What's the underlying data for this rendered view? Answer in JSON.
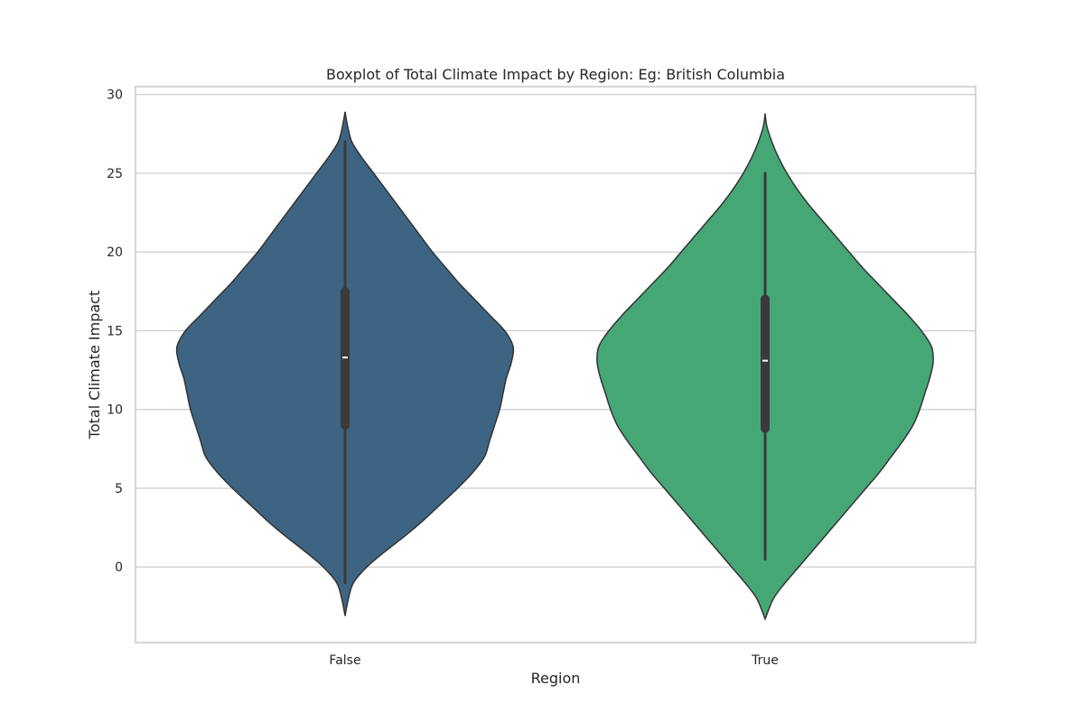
{
  "chart_data": {
    "type": "violin",
    "title": "Boxplot of Total Climate Impact by Region: Eg: British Columbia",
    "xlabel": "Region",
    "ylabel": "Total Climate Impact",
    "ylim": [
      -4.8,
      30.5
    ],
    "yticks": [
      0,
      5,
      10,
      15,
      20,
      25,
      30
    ],
    "ytick_labels": [
      "0",
      "5",
      "10",
      "15",
      "20",
      "25",
      "30"
    ],
    "grid": true,
    "categories": [
      "False",
      "True"
    ],
    "series": [
      {
        "name": "False",
        "color": "#3d6482",
        "box": {
          "whisker_low": -1.0,
          "q1": 9.0,
          "median": 13.3,
          "q3": 17.5,
          "whisker_high": 27.0
        },
        "kde_extent": [
          -3.1,
          28.9
        ],
        "density_profile": [
          [
            -3.1,
            0.0
          ],
          [
            -2.0,
            0.02
          ],
          [
            -1.0,
            0.05
          ],
          [
            0.0,
            0.13
          ],
          [
            1.0,
            0.24
          ],
          [
            2.0,
            0.36
          ],
          [
            3.0,
            0.47
          ],
          [
            4.0,
            0.57
          ],
          [
            5.0,
            0.67
          ],
          [
            6.0,
            0.76
          ],
          [
            7.0,
            0.83
          ],
          [
            8.0,
            0.86
          ],
          [
            9.0,
            0.89
          ],
          [
            10.0,
            0.92
          ],
          [
            11.0,
            0.94
          ],
          [
            12.0,
            0.96
          ],
          [
            13.0,
            0.99
          ],
          [
            14.0,
            1.0
          ],
          [
            15.0,
            0.95
          ],
          [
            16.0,
            0.86
          ],
          [
            17.0,
            0.77
          ],
          [
            18.0,
            0.68
          ],
          [
            19.0,
            0.6
          ],
          [
            20.0,
            0.52
          ],
          [
            21.0,
            0.45
          ],
          [
            22.0,
            0.38
          ],
          [
            23.0,
            0.31
          ],
          [
            24.0,
            0.24
          ],
          [
            25.0,
            0.17
          ],
          [
            26.0,
            0.1
          ],
          [
            27.0,
            0.04
          ],
          [
            28.0,
            0.015
          ],
          [
            28.9,
            0.0
          ]
        ]
      },
      {
        "name": "True",
        "color": "#45a776",
        "box": {
          "whisker_low": 0.5,
          "q1": 8.8,
          "median": 13.1,
          "q3": 17.0,
          "whisker_high": 25.0
        },
        "kde_extent": [
          -3.3,
          28.8
        ],
        "density_profile": [
          [
            -3.3,
            0.0
          ],
          [
            -2.0,
            0.05
          ],
          [
            -1.0,
            0.12
          ],
          [
            0.0,
            0.2
          ],
          [
            1.0,
            0.28
          ],
          [
            2.0,
            0.36
          ],
          [
            3.0,
            0.44
          ],
          [
            4.0,
            0.52
          ],
          [
            5.0,
            0.6
          ],
          [
            6.0,
            0.68
          ],
          [
            7.0,
            0.75
          ],
          [
            8.0,
            0.82
          ],
          [
            9.0,
            0.88
          ],
          [
            10.0,
            0.92
          ],
          [
            11.0,
            0.95
          ],
          [
            12.0,
            0.98
          ],
          [
            13.0,
            1.0
          ],
          [
            14.0,
            0.99
          ],
          [
            15.0,
            0.93
          ],
          [
            16.0,
            0.85
          ],
          [
            17.0,
            0.76
          ],
          [
            18.0,
            0.67
          ],
          [
            19.0,
            0.58
          ],
          [
            20.0,
            0.5
          ],
          [
            21.0,
            0.42
          ],
          [
            22.0,
            0.34
          ],
          [
            23.0,
            0.26
          ],
          [
            24.0,
            0.19
          ],
          [
            25.0,
            0.13
          ],
          [
            26.0,
            0.08
          ],
          [
            27.0,
            0.04
          ],
          [
            28.0,
            0.01
          ],
          [
            28.8,
            0.0
          ]
        ]
      }
    ]
  }
}
